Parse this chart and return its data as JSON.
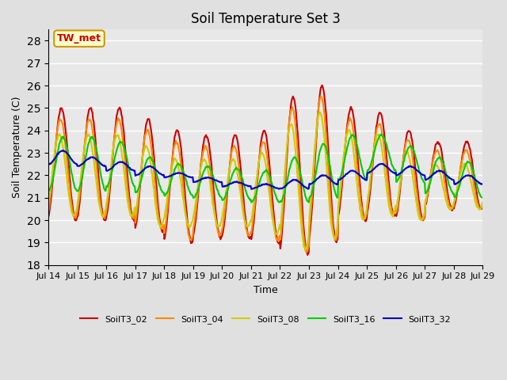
{
  "title": "Soil Temperature Set 3",
  "xlabel": "Time",
  "ylabel": "Soil Temperature (C)",
  "ylim": [
    18.0,
    28.5
  ],
  "yticks": [
    18.0,
    19.0,
    20.0,
    21.0,
    22.0,
    23.0,
    24.0,
    25.0,
    26.0,
    27.0,
    28.0
  ],
  "background_color": "#e0e0e0",
  "plot_bg_color": "#e8e8e8",
  "annotation_text": "TW_met",
  "annotation_bg": "#ffffcc",
  "annotation_border": "#cc9900",
  "annotation_text_color": "#cc0000",
  "series": {
    "SoilT3_02": {
      "color": "#cc0000",
      "lw": 1.5
    },
    "SoilT3_04": {
      "color": "#ff8800",
      "lw": 1.5
    },
    "SoilT3_08": {
      "color": "#cccc00",
      "lw": 1.5
    },
    "SoilT3_16": {
      "color": "#00cc00",
      "lw": 1.5
    },
    "SoilT3_32": {
      "color": "#0000cc",
      "lw": 1.5
    }
  },
  "legend_dash_colors": [
    "#cc0000",
    "#ff8800",
    "#cccc00",
    "#00cc00",
    "#0000cc"
  ],
  "legend_labels": [
    "SoilT3_02",
    "SoilT3_04",
    "SoilT3_08",
    "SoilT3_16",
    "SoilT3_32"
  ],
  "xtick_labels": [
    "Jul 14",
    "Jul 15",
    "Jul 16",
    "Jul 17",
    "Jul 18",
    "Jul 19",
    "Jul 20",
    "Jul 21",
    "Jul 22",
    "Jul 23",
    "Jul 24",
    "Jul 25",
    "Jul 26",
    "Jul 27",
    "Jul 28",
    "Jul 29"
  ],
  "n_days": 15,
  "start_day": 0
}
